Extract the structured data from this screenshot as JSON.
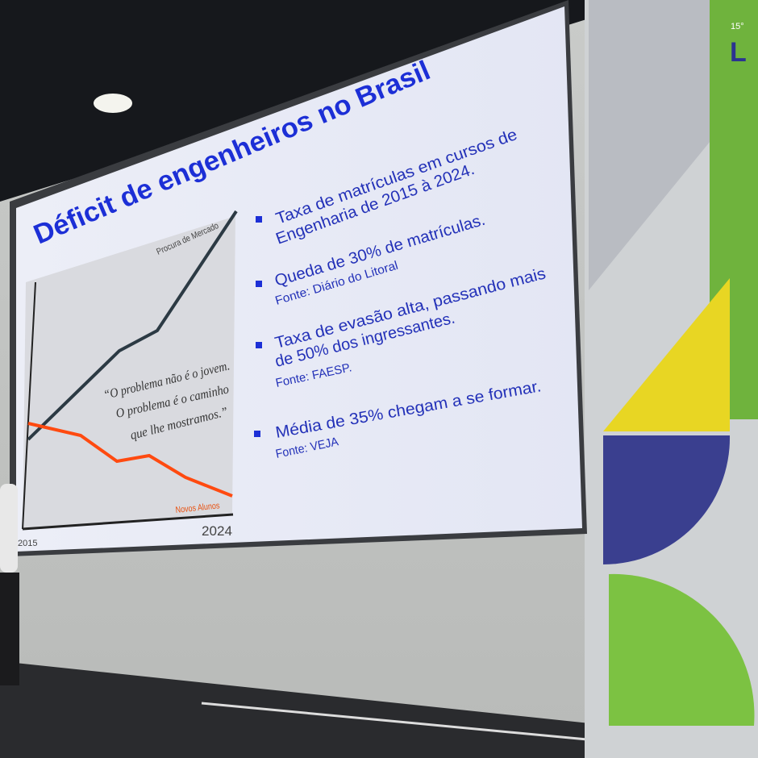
{
  "slide": {
    "title": "Déficit de engenheiros no Brasil",
    "chart": {
      "demand_label": "Procura de Mercado",
      "students_label": "Novos Alunos",
      "start_year": "2015",
      "end_year": "2024",
      "quote": [
        "“O problema não é o jovem.",
        "O problema é o caminho",
        "que lhe mostramos.”"
      ]
    },
    "bullets": [
      {
        "text": [
          "Taxa de matrículas em cursos de",
          "Engenharia de 2015 à 2024."
        ]
      },
      {
        "text": [
          "Queda de 30% de matrículas."
        ],
        "source": "Fonte: Diário do Litoral"
      },
      {
        "text": [
          "Taxa de evasão alta, passando mais",
          "de 50% dos ingressantes."
        ],
        "source": "Fonte: FAESP."
      },
      {
        "text": [
          "Média de 35% chegam a se formar."
        ],
        "source": "Fonte: VEJA"
      }
    ]
  },
  "sign": {
    "edition": "15°",
    "name": "L"
  }
}
